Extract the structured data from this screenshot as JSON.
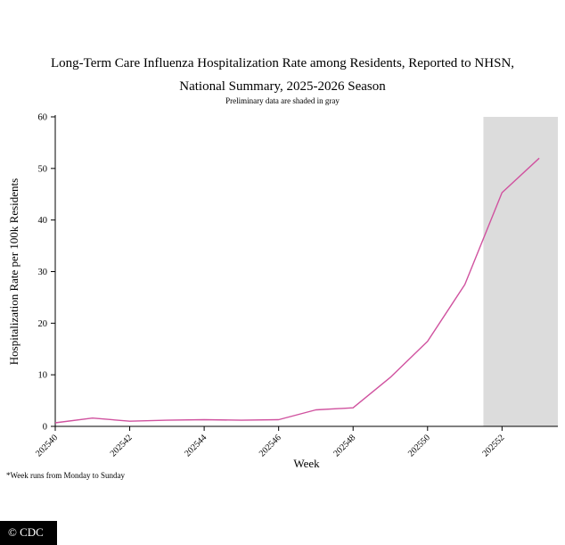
{
  "page": {
    "title_line1": "Long-Term Care Influenza Hospitalization Rate among Residents, Reported to NHSN,",
    "title_line2": "National Summary, 2025-2026 Season",
    "subtitle": "Preliminary data are shaded in gray",
    "footnote": "*Week runs from Monday to Sunday",
    "watermark": "© CDC"
  },
  "chart_data": {
    "type": "line",
    "title": "Long-Term Care Influenza Hospitalization Rate among Residents, Reported to NHSN, National Summary, 2025-2026 Season",
    "subtitle": "Preliminary data are shaded in gray",
    "xlabel": "Week",
    "ylabel": "Hospitalization Rate per 100k Residents",
    "x": [
      202540,
      202541,
      202542,
      202543,
      202544,
      202545,
      202546,
      202547,
      202548,
      202549,
      202550,
      202551,
      202552,
      202553
    ],
    "values": [
      0.7,
      1.6,
      1.0,
      1.2,
      1.3,
      1.2,
      1.3,
      3.2,
      3.6,
      9.5,
      16.5,
      27.5,
      45.3,
      52.0
    ],
    "xlim": [
      202540,
      202553.5
    ],
    "ylim": [
      0,
      60
    ],
    "yticks": [
      0,
      10,
      20,
      30,
      40,
      50,
      60
    ],
    "xticks": [
      202540,
      202542,
      202544,
      202546,
      202548,
      202550,
      202552
    ],
    "line_color": "#d0529f",
    "shade": {
      "from": 202551.5,
      "to": 202553.5,
      "color": "#dcdcdc",
      "meaning": "Preliminary data"
    },
    "grid": false,
    "legend": "none",
    "footnote": "*Week runs from Monday to Sunday",
    "source_watermark": "© CDC"
  }
}
